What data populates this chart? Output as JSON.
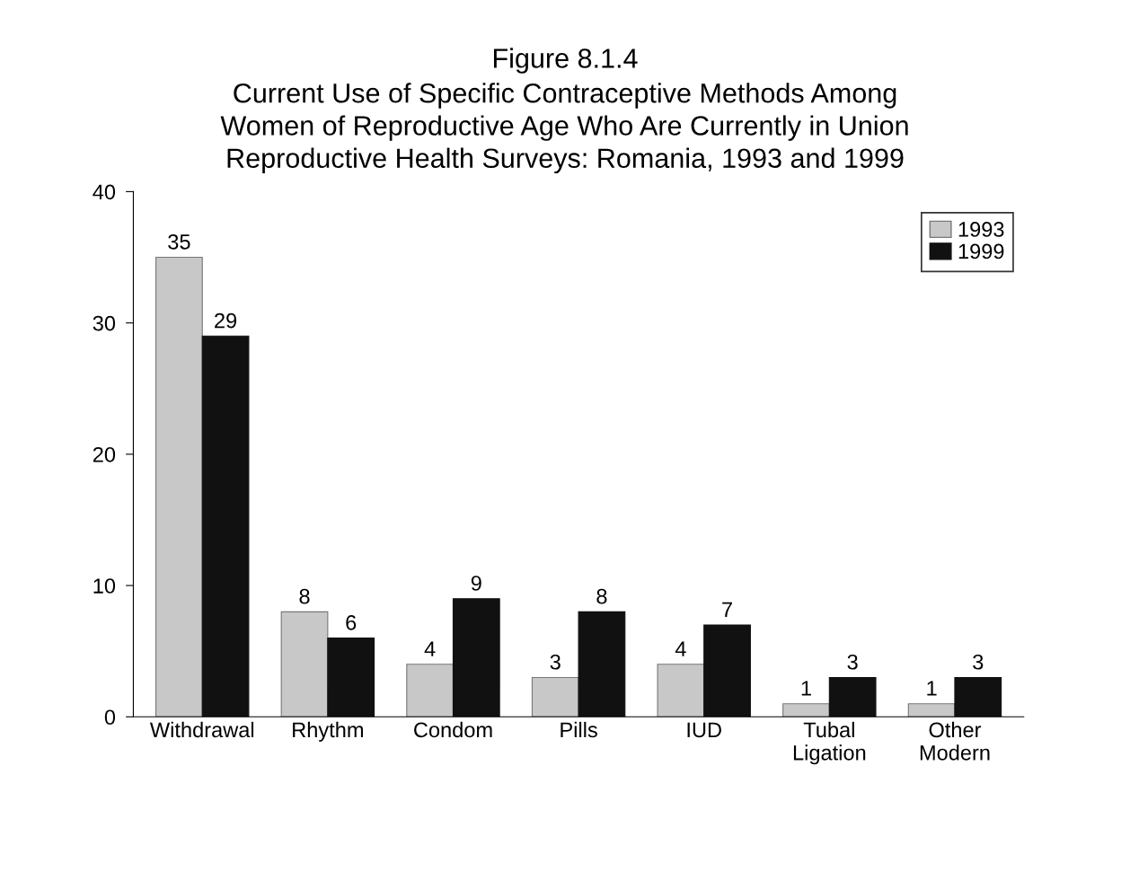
{
  "chart_data": {
    "type": "bar",
    "title": "Figure 8.1.4",
    "subtitle": "Current Use of Specific Contraceptive Methods Among\nWomen of Reproductive Age Who Are Currently in Union\nReproductive Health Surveys: Romania, 1993 and 1999",
    "categories": [
      "Withdrawal",
      "Rhythm",
      "Condom",
      "Pills",
      "IUD",
      "Tubal\nLigation",
      "Other\nModern"
    ],
    "series": [
      {
        "name": "1993",
        "color": "#c8c8c8",
        "values": [
          35,
          8,
          4,
          3,
          4,
          1,
          1
        ]
      },
      {
        "name": "1999",
        "color": "#111111",
        "values": [
          29,
          6,
          9,
          8,
          7,
          3,
          3
        ]
      }
    ],
    "ylim": [
      0,
      40
    ],
    "yticks": [
      0,
      10,
      20,
      30,
      40
    ],
    "grid": false,
    "legend": "top right",
    "data_labels": true
  }
}
